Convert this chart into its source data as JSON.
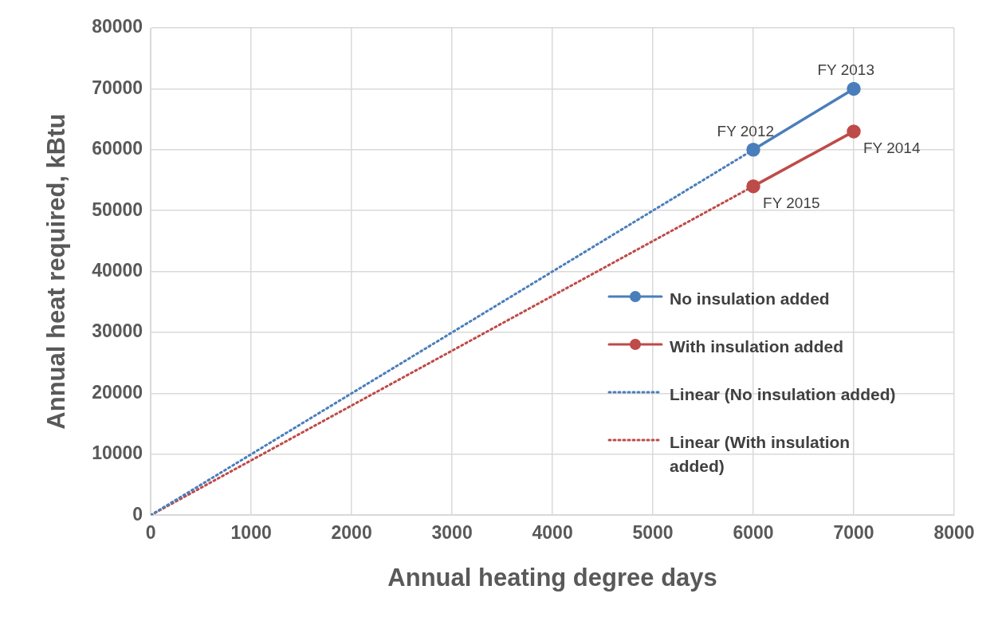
{
  "chart_data": {
    "type": "line",
    "xlabel": "Annual heating degree days",
    "ylabel": "Annual heat required, kBtu",
    "xlim": [
      0,
      8000
    ],
    "xticks": [
      0,
      1000,
      2000,
      3000,
      4000,
      5000,
      6000,
      7000,
      8000
    ],
    "ylim": [
      0,
      80000
    ],
    "yticks": [
      0,
      10000,
      20000,
      30000,
      40000,
      50000,
      60000,
      70000,
      80000
    ],
    "grid": true,
    "legend": "right",
    "series": [
      {
        "name": "No insulation added",
        "color": "#4a7ebb",
        "x": [
          6000,
          7000
        ],
        "values": [
          60000,
          70000
        ],
        "value_labels": [
          "FY 2012",
          "FY 2013"
        ],
        "marker": "circle",
        "line_style": "solid"
      },
      {
        "name": "With insulation added",
        "color": "#be4b48",
        "x": [
          6000,
          7000
        ],
        "values": [
          54000,
          63000
        ],
        "value_labels": [
          "FY 2015",
          "FY 2014"
        ],
        "marker": "circle",
        "line_style": "solid"
      },
      {
        "name": "Linear (No insulation added)",
        "color": "#4a7ebb",
        "x": [
          0,
          6000
        ],
        "values": [
          0,
          60000
        ],
        "marker": "none",
        "line_style": "dotted"
      },
      {
        "name": "Linear (With insulation added)",
        "color": "#be4b48",
        "x": [
          0,
          6000
        ],
        "values": [
          0,
          54000
        ],
        "marker": "none",
        "line_style": "dotted"
      }
    ]
  }
}
